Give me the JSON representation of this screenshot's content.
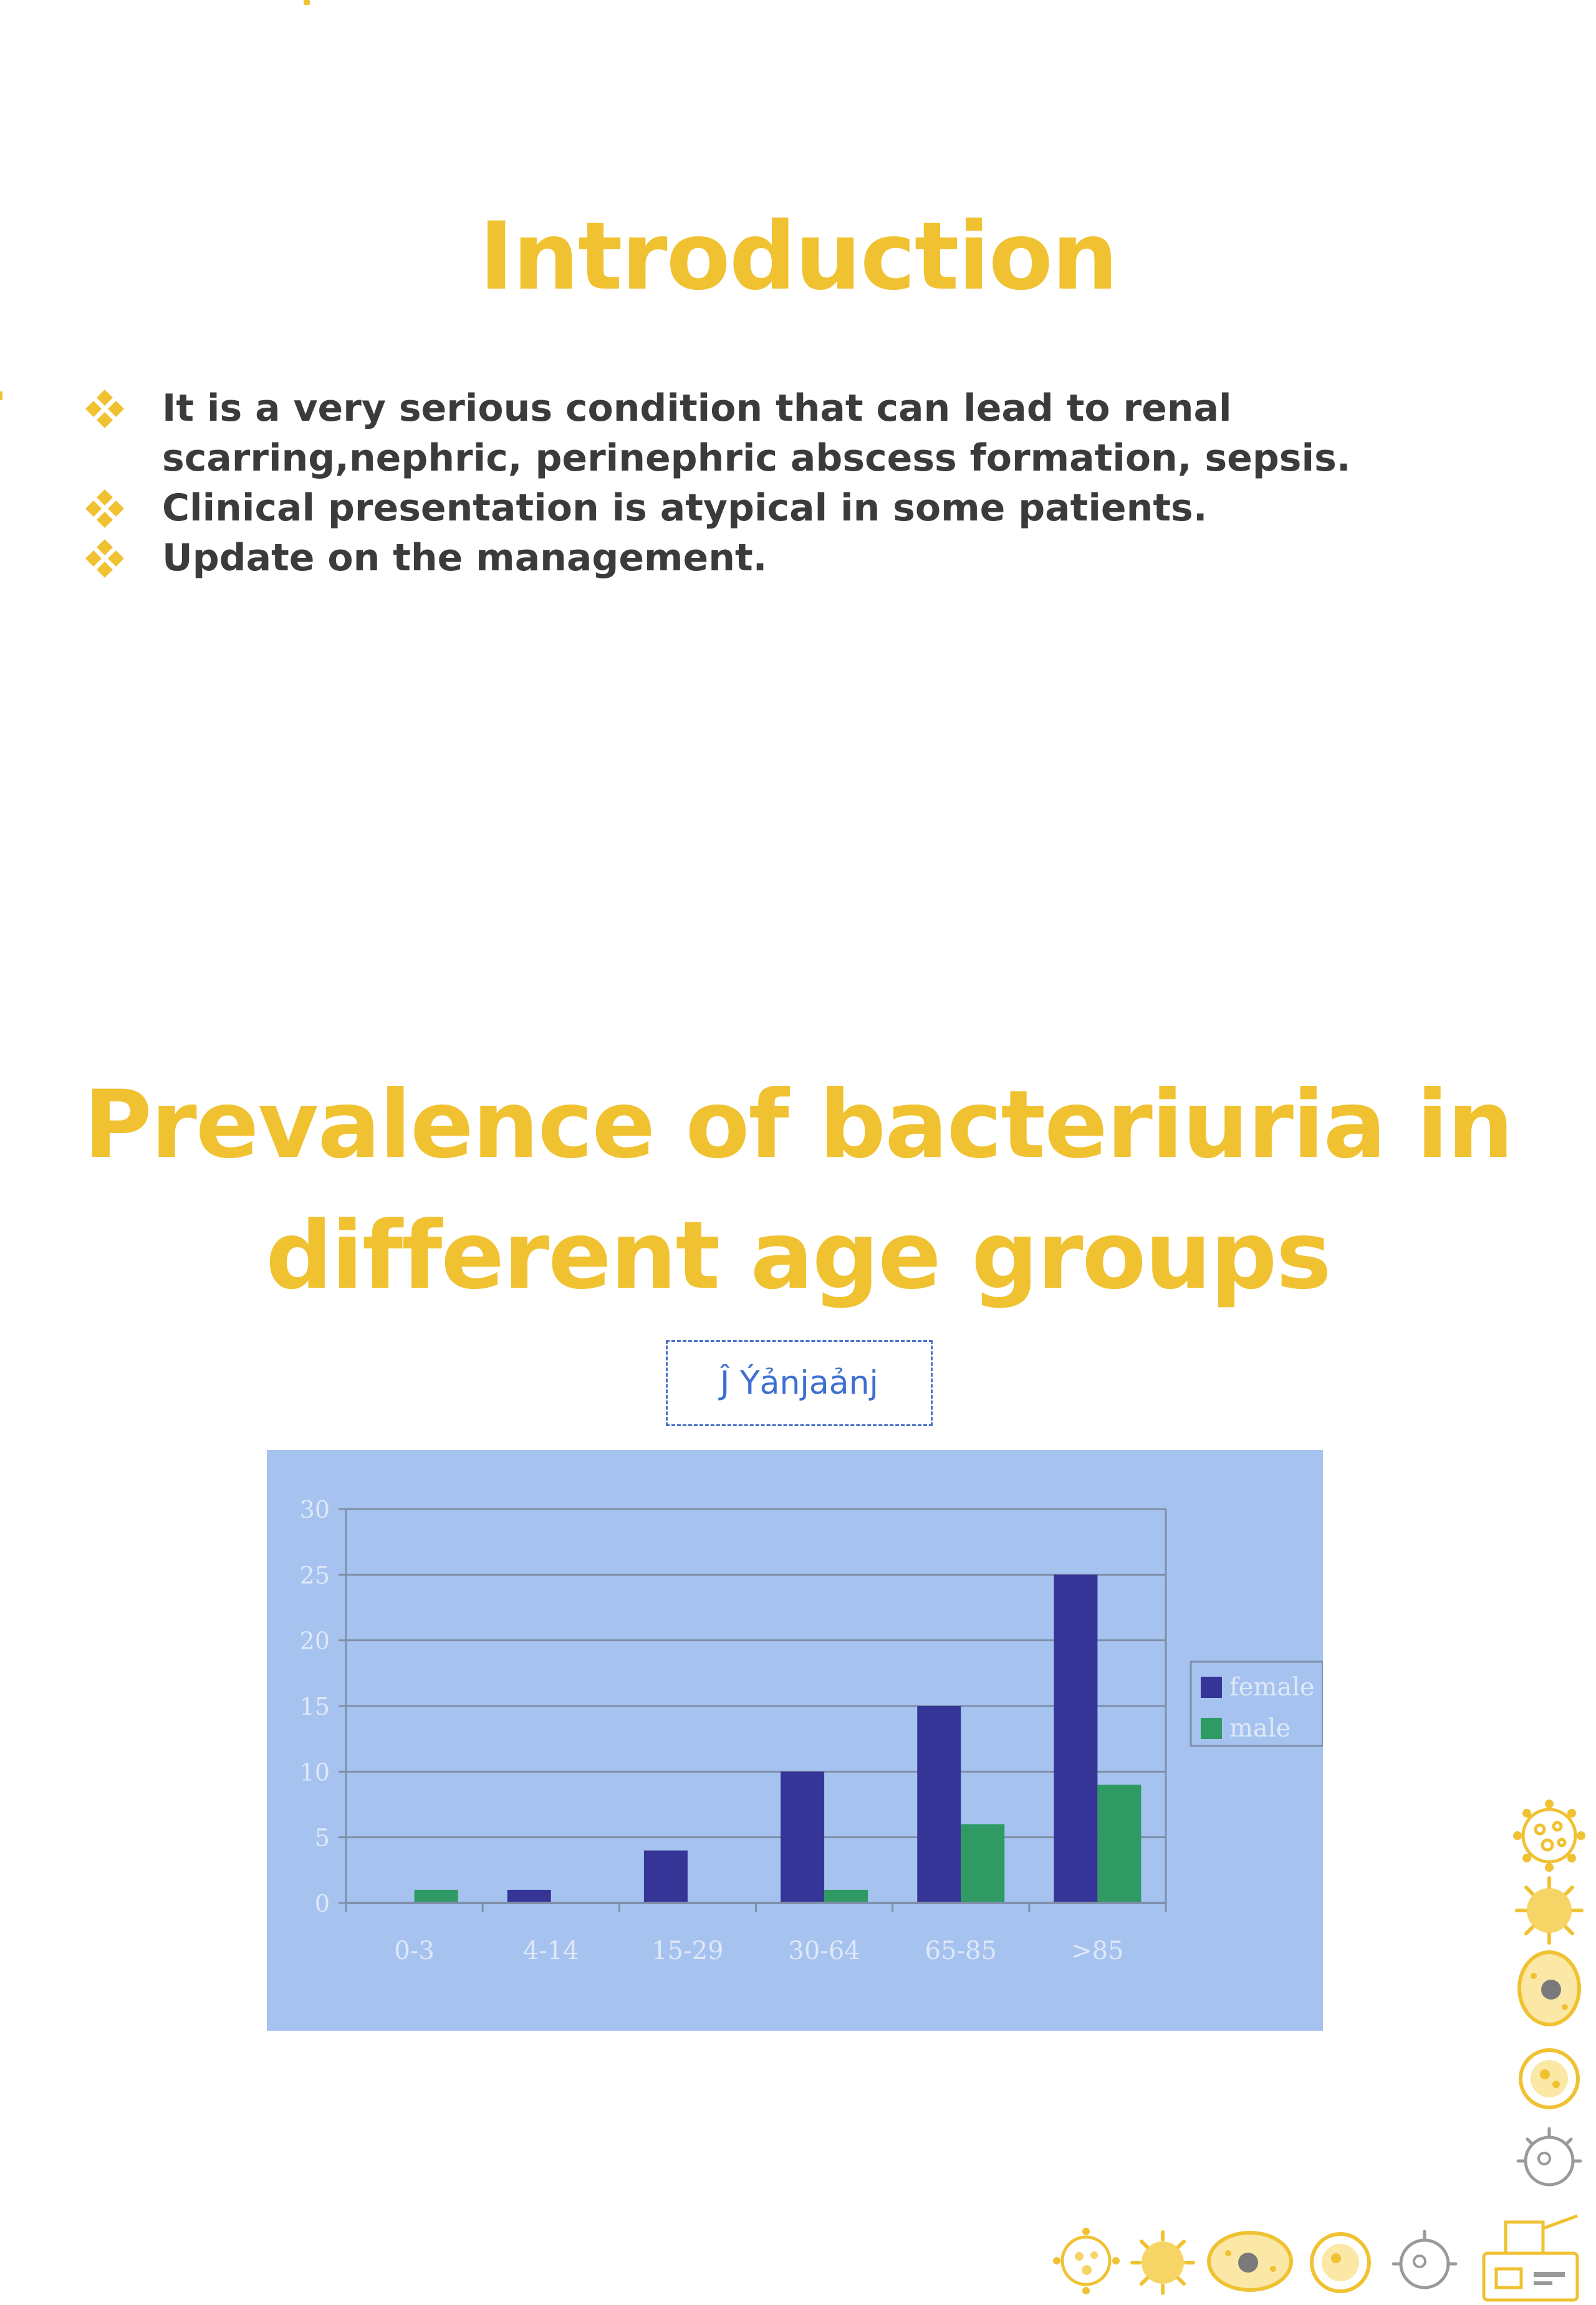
{
  "slide1": {
    "title": "Introduction",
    "bullets": [
      "It is a very serious condition that can lead to renal scarring,nephric, perinephric abscess formation, sepsis.",
      "Clinical presentation is atypical in some patients.",
      "Update on the management."
    ]
  },
  "slide2": {
    "title_line1": "Prevalence of bacteriuria in",
    "title_line2": "different age groups",
    "image_caption": "Ĵ Ýảnjaảnj"
  },
  "colors": {
    "title": "#f0c232",
    "text": "#3b3b3b",
    "chart_background": "#a6c3f0",
    "female": "#353597",
    "male": "#2f9a63"
  },
  "icons": [
    "diamond-bullet-icon",
    "virus-icon",
    "bacteria-icon",
    "cell-icon",
    "lab-equipment-icon"
  ],
  "chart_data": {
    "type": "bar",
    "categories": [
      "0-3",
      "4-14",
      "15-29",
      "30-64",
      "65-85",
      ">85"
    ],
    "series": [
      {
        "name": "female",
        "values": [
          0,
          1,
          4,
          10,
          15,
          25
        ]
      },
      {
        "name": "male",
        "values": [
          1,
          0,
          0,
          1,
          6,
          9
        ]
      }
    ],
    "ylim": [
      0,
      30
    ],
    "yticks": [
      0,
      5,
      10,
      15,
      20,
      25,
      30
    ],
    "grid": true,
    "legend": "right"
  }
}
